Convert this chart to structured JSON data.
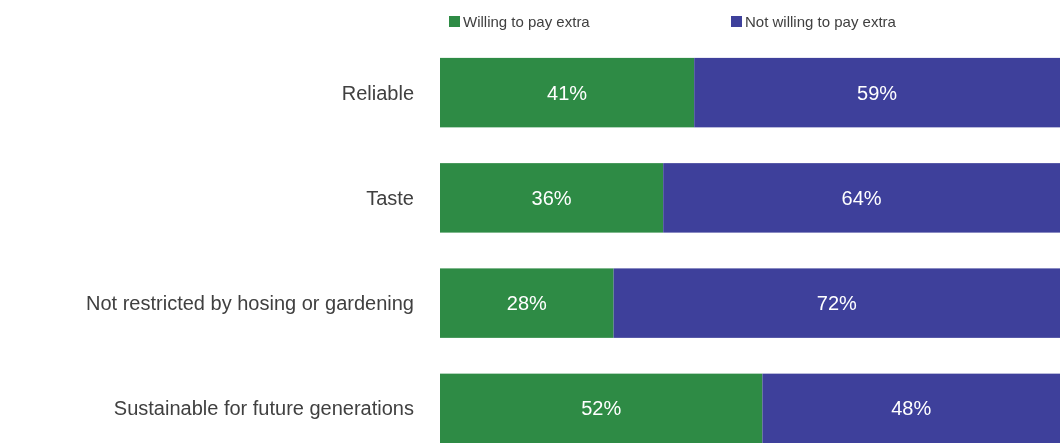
{
  "chart_data": {
    "type": "bar",
    "orientation": "horizontal",
    "stacked": true,
    "categories": [
      "Reliable",
      "Taste",
      "Not restricted by hosing or gardening",
      "Sustainable for future generations"
    ],
    "series": [
      {
        "name": "Willing to pay extra",
        "color": "#2e8b45",
        "values": [
          41,
          36,
          28,
          52
        ],
        "value_labels": [
          "41%",
          "36%",
          "28%",
          "52%"
        ]
      },
      {
        "name": "Not willing to pay extra",
        "color": "#3e409b",
        "values": [
          59,
          64,
          72,
          48
        ],
        "value_labels": [
          "59%",
          "64%",
          "72%",
          "48%"
        ]
      }
    ],
    "xlim": [
      0,
      100
    ],
    "tick_labels": "y",
    "legend": "top"
  }
}
